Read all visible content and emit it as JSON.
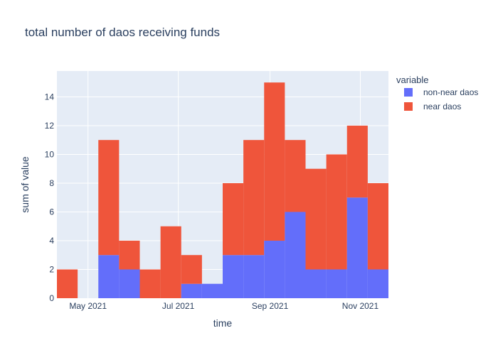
{
  "chart_data": {
    "type": "bar",
    "stacked": true,
    "title": "total number of daos receiving funds",
    "xlabel": "time",
    "ylabel": "sum of value",
    "ylim": [
      0,
      15.8
    ],
    "yticks": [
      0,
      2,
      4,
      6,
      8,
      10,
      12,
      14
    ],
    "grid": true,
    "legend_position": "top-right",
    "legend_title": "variable",
    "x_tick_labels": [
      "May 2021",
      "Jul 2021",
      "Sep 2021",
      "Nov 2021"
    ],
    "x_tick_dates": [
      "2021-05-01",
      "2021-07-01",
      "2021-09-01",
      "2021-11-01"
    ],
    "x_range": [
      "2021-04-10",
      "2021-11-20"
    ],
    "bins": [
      [
        "2021-04-10",
        "2021-04-24"
      ],
      [
        "2021-04-24",
        "2021-05-08"
      ],
      [
        "2021-05-08",
        "2021-05-22"
      ],
      [
        "2021-05-22",
        "2021-06-05"
      ],
      [
        "2021-06-05",
        "2021-06-19"
      ],
      [
        "2021-06-19",
        "2021-07-03"
      ],
      [
        "2021-07-03",
        "2021-07-17"
      ],
      [
        "2021-07-17",
        "2021-07-31"
      ],
      [
        "2021-07-31",
        "2021-08-14"
      ],
      [
        "2021-08-14",
        "2021-08-28"
      ],
      [
        "2021-08-28",
        "2021-09-11"
      ],
      [
        "2021-09-11",
        "2021-09-25"
      ],
      [
        "2021-09-25",
        "2021-10-09"
      ],
      [
        "2021-10-09",
        "2021-10-23"
      ],
      [
        "2021-10-23",
        "2021-11-06"
      ],
      [
        "2021-11-06",
        "2021-11-20"
      ]
    ],
    "series": [
      {
        "name": "non-near daos",
        "color": "#636efa",
        "values": [
          0,
          0,
          3,
          2,
          0,
          0,
          1,
          1,
          3,
          3,
          4,
          6,
          2,
          2,
          7,
          2
        ]
      },
      {
        "name": "near daos",
        "color": "#ef553b",
        "values": [
          2,
          0,
          8,
          2,
          2,
          5,
          2,
          0,
          5,
          8,
          11,
          5,
          7,
          8,
          5,
          6
        ]
      }
    ]
  }
}
